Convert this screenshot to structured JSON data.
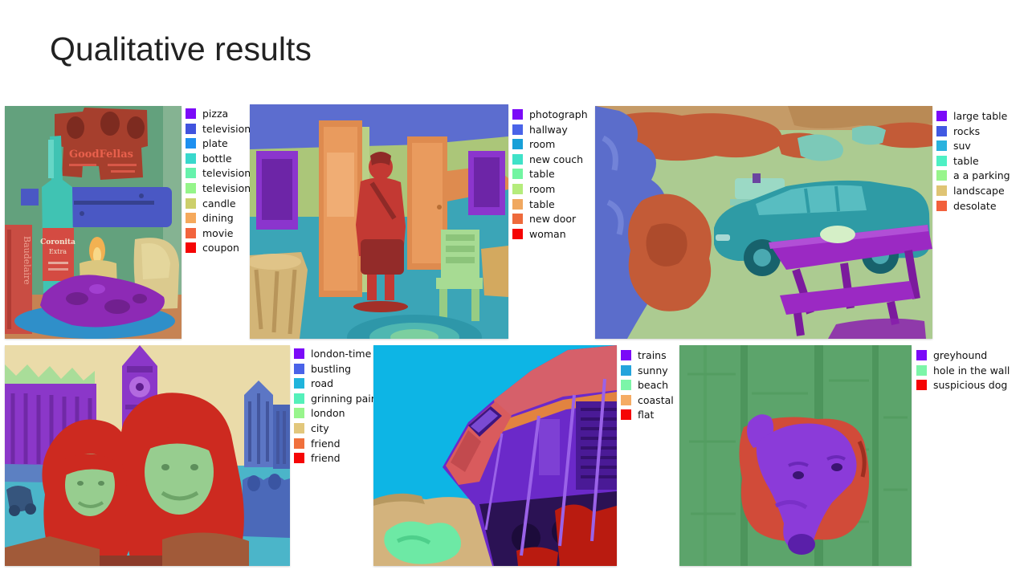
{
  "slide": {
    "title": "Qualitative results"
  },
  "figures": [
    {
      "name": "movie-still-life",
      "embedded_text": {
        "poster": "GoodFellas",
        "bottle_line1": "Coronita",
        "bottle_line2": "Extra",
        "book_spine": "Baudelaire"
      },
      "legend": [
        {
          "label": "pizza",
          "color": "#7b0af8"
        },
        {
          "label": "television",
          "color": "#4153de"
        },
        {
          "label": "plate",
          "color": "#1e90f0"
        },
        {
          "label": "bottle",
          "color": "#38d8cc"
        },
        {
          "label": "television",
          "color": "#66f2ac"
        },
        {
          "label": "television",
          "color": "#95f58a"
        },
        {
          "label": "candle",
          "color": "#cccf6a"
        },
        {
          "label": "dining",
          "color": "#f5a95c"
        },
        {
          "label": "movie",
          "color": "#f2643d"
        },
        {
          "label": "coupon",
          "color": "#f50505"
        }
      ]
    },
    {
      "name": "hallway",
      "legend": [
        {
          "label": "photograph",
          "color": "#7b0af8"
        },
        {
          "label": "hallway",
          "color": "#4a63e8"
        },
        {
          "label": "room",
          "color": "#18a0d8"
        },
        {
          "label": "new couch",
          "color": "#3fe2c8"
        },
        {
          "label": "table",
          "color": "#72f5a2"
        },
        {
          "label": "room",
          "color": "#b5ec7c"
        },
        {
          "label": "table",
          "color": "#f0a860"
        },
        {
          "label": "new door",
          "color": "#ee6a3c"
        },
        {
          "label": "woman",
          "color": "#f50505"
        }
      ]
    },
    {
      "name": "parking-lot",
      "legend": [
        {
          "label": "large table",
          "color": "#7b0af8"
        },
        {
          "label": "rocks",
          "color": "#4159e2"
        },
        {
          "label": "suv",
          "color": "#29b2de"
        },
        {
          "label": "table",
          "color": "#4ef0c4"
        },
        {
          "label": "a a parking",
          "color": "#98f58c"
        },
        {
          "label": "landscape",
          "color": "#dfc474"
        },
        {
          "label": "desolate",
          "color": "#f2603c"
        }
      ]
    },
    {
      "name": "london-selfie",
      "legend": [
        {
          "label": "london-time",
          "color": "#7b0af8"
        },
        {
          "label": "bustling",
          "color": "#4a63e8"
        },
        {
          "label": "road",
          "color": "#1fb4dc"
        },
        {
          "label": "grinning pair",
          "color": "#55f0ba"
        },
        {
          "label": "london",
          "color": "#98f58c"
        },
        {
          "label": "city",
          "color": "#e2c77c"
        },
        {
          "label": "friend",
          "color": "#f0703c"
        },
        {
          "label": "friend",
          "color": "#f50505"
        }
      ]
    },
    {
      "name": "train",
      "legend": [
        {
          "label": "trains",
          "color": "#7b0af8"
        },
        {
          "label": "sunny",
          "color": "#24a4dc"
        },
        {
          "label": "beach",
          "color": "#7cf5a8"
        },
        {
          "label": "coastal",
          "color": "#f5ac64"
        },
        {
          "label": "flat",
          "color": "#f50505"
        }
      ]
    },
    {
      "name": "dog-in-wall",
      "legend": [
        {
          "label": "greyhound",
          "color": "#7b0af8"
        },
        {
          "label": "hole in the wall",
          "color": "#7cf5a8"
        },
        {
          "label": "suspicious dog",
          "color": "#f50505"
        }
      ]
    }
  ]
}
